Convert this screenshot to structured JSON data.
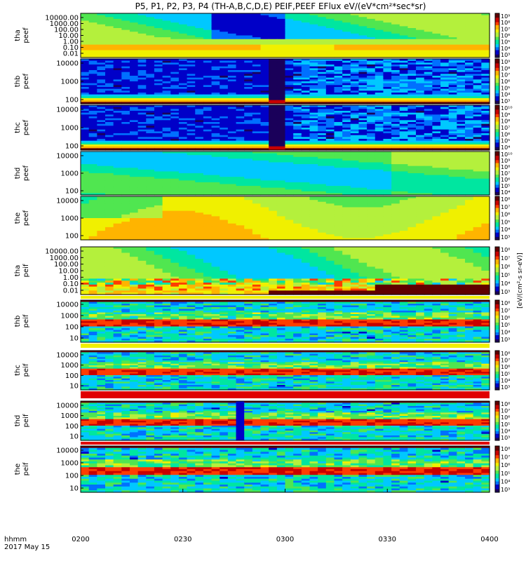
{
  "chart_data": {
    "type": "heatmap",
    "title": "P5, P1, P2, P3, P4 (TH-A,B,C,D,E) PEIF,PEEF EFlux eV/(eV*cm²*sec*sr)",
    "x_ticks": [
      "0200",
      "0230",
      "0300",
      "0330",
      "0400"
    ],
    "x_range": [
      "02:00",
      "04:00"
    ],
    "x_label_lines": [
      "hhmm",
      "2017 May 15"
    ],
    "colorbar_label": "[eV/(cm²-s sr-eV)]",
    "panels": [
      {
        "probe": "tha",
        "quantity": "peef",
        "y_ticks": [
          "10000.00",
          "1000.00",
          "100.00",
          "10.00",
          "1.00",
          "0.10",
          "0.01"
        ],
        "log": true,
        "cb_ticks": [
          "10⁹",
          "10⁸",
          "10⁷",
          "10⁶",
          "10⁵",
          "10⁴",
          "10³"
        ]
      },
      {
        "probe": "thb",
        "quantity": "peef",
        "y_ticks": [
          "10000",
          "1000",
          "100"
        ],
        "log": true,
        "cb_ticks": [
          "10⁹",
          "10⁸",
          "10⁷",
          "10⁶",
          "10⁵",
          "10⁴",
          "10³"
        ]
      },
      {
        "probe": "thc",
        "quantity": "peef",
        "y_ticks": [
          "10000",
          "1000",
          "100"
        ],
        "log": true,
        "cb_ticks": [
          "10¹⁰",
          "10⁹",
          "10⁸",
          "10⁷",
          "10⁶",
          "10⁵",
          "10⁴"
        ]
      },
      {
        "probe": "thd",
        "quantity": "peef",
        "y_ticks": [
          "10000",
          "1000",
          "100"
        ],
        "log": true,
        "cb_ticks": [
          "10¹⁰",
          "10⁹",
          "10⁸",
          "10⁷",
          "10⁶",
          "10⁵",
          "10⁴"
        ]
      },
      {
        "probe": "the",
        "quantity": "peef",
        "y_ticks": [
          "10000",
          "1000",
          "100"
        ],
        "log": true,
        "cb_ticks": [
          "10⁸",
          "10⁷",
          "10⁶",
          "10⁵",
          "10⁴",
          "10³"
        ]
      },
      {
        "probe": "tha",
        "quantity": "peif",
        "y_ticks": [
          "10000.00",
          "1000.00",
          "100.00",
          "10.00",
          "1.00",
          "0.10",
          "0.01"
        ],
        "log": true,
        "cb_ticks": [
          "10⁸",
          "10⁷",
          "10⁶",
          "10⁵",
          "10⁴",
          "10³"
        ]
      },
      {
        "probe": "thb",
        "quantity": "peif",
        "y_ticks": [
          "10000",
          "1000",
          "100",
          "10"
        ],
        "log": true,
        "cb_ticks": [
          "10⁸",
          "10⁷",
          "10⁶",
          "10⁵",
          "10⁴",
          "10³"
        ]
      },
      {
        "probe": "thc",
        "quantity": "peif",
        "y_ticks": [
          "10000",
          "1000",
          "100",
          "10"
        ],
        "log": true,
        "cb_ticks": [
          "10⁸",
          "10⁷",
          "10⁶",
          "10⁵",
          "10⁴",
          "10³"
        ]
      },
      {
        "probe": "thd",
        "quantity": "peif",
        "y_ticks": [
          "10000",
          "1000",
          "100",
          "10"
        ],
        "log": true,
        "cb_ticks": [
          "10⁸",
          "10⁷",
          "10⁶",
          "10⁵",
          "10⁴",
          "10³"
        ]
      },
      {
        "probe": "the",
        "quantity": "peif",
        "y_ticks": [
          "10000",
          "1000",
          "100",
          "10"
        ],
        "log": true,
        "cb_ticks": [
          "10⁸",
          "10⁷",
          "10⁶",
          "10⁵",
          "10⁴",
          "10³"
        ]
      }
    ],
    "colorscale": [
      "#1a005a",
      "#0000c8",
      "#0070ff",
      "#00c8ff",
      "#00e6a0",
      "#50e650",
      "#b4f03c",
      "#f0f000",
      "#ffb400",
      "#ff3c00",
      "#c80000",
      "#600000"
    ]
  }
}
